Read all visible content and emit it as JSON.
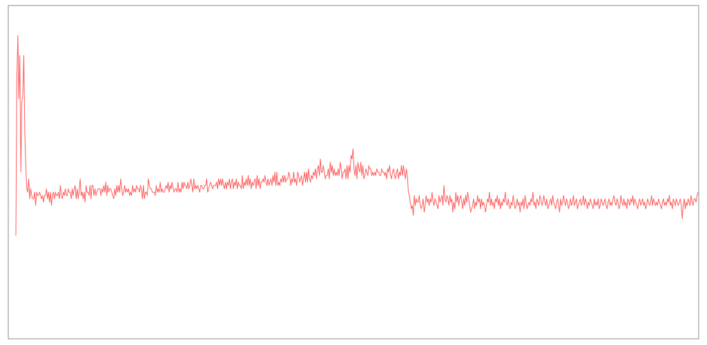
{
  "chart_data": {
    "type": "line",
    "title": "",
    "xlabel": "",
    "ylabel": "",
    "grid": false,
    "legend": "none",
    "xlim": [
      0,
      699
    ],
    "ylim": [
      0,
      100
    ],
    "series": [
      {
        "color": "#ff5a5a",
        "values": [
          31,
          78,
          91,
          72,
          85,
          50,
          71,
          73,
          85,
          62,
          52,
          45,
          44,
          48,
          42,
          45,
          43,
          42,
          42,
          44,
          40,
          44,
          43,
          43,
          44,
          43,
          42,
          43,
          41,
          43,
          43,
          45,
          42,
          44,
          41,
          44,
          40,
          43,
          44,
          42,
          44,
          43,
          43,
          44,
          42,
          46,
          43,
          42,
          44,
          43,
          45,
          43,
          43,
          45,
          44,
          44,
          42,
          45,
          43,
          45,
          46,
          42,
          45,
          42,
          44,
          48,
          43,
          44,
          42,
          44,
          41,
          46,
          44,
          44,
          43,
          46,
          42,
          46,
          46,
          43,
          45,
          43,
          44,
          45,
          45,
          45,
          43,
          45,
          44,
          46,
          44,
          47,
          43,
          46,
          44,
          45,
          45,
          44,
          43,
          42,
          45,
          43,
          46,
          44,
          46,
          44,
          48,
          45,
          43,
          44,
          46,
          44,
          45,
          44,
          45,
          43,
          44,
          43,
          46,
          44,
          45,
          44,
          46,
          45,
          45,
          44,
          46,
          45,
          42,
          46,
          42,
          44,
          44,
          43,
          48,
          46,
          45,
          45,
          44,
          44,
          44,
          43,
          46,
          44,
          45,
          44,
          47,
          44,
          45,
          44,
          44,
          45,
          46,
          45,
          47,
          44,
          46,
          45,
          47,
          45,
          44,
          45,
          45,
          44,
          47,
          44,
          45,
          44,
          47,
          45,
          47,
          46,
          46,
          45,
          47,
          45,
          46,
          48,
          46,
          44,
          48,
          45,
          46,
          45,
          46,
          45,
          44,
          46,
          46,
          45,
          45,
          46,
          46,
          48,
          44,
          45,
          46,
          47,
          46,
          45,
          46,
          46,
          46,
          47,
          45,
          48,
          46,
          48,
          46,
          48,
          46,
          45,
          47,
          45,
          47,
          46,
          48,
          45,
          47,
          48,
          45,
          47,
          46,
          48,
          45,
          47,
          46,
          46,
          45,
          49,
          45,
          47,
          46,
          48,
          46,
          49,
          46,
          48,
          45,
          47,
          46,
          47,
          48,
          45,
          49,
          46,
          48,
          45,
          47,
          47,
          48,
          47,
          49,
          47,
          46,
          48,
          46,
          47,
          48,
          46,
          49,
          47,
          50,
          46,
          50,
          46,
          47,
          46,
          48,
          47,
          49,
          47,
          49,
          47,
          48,
          48,
          50,
          49,
          46,
          48,
          47,
          50,
          47,
          48,
          46,
          50,
          49,
          47,
          48,
          49,
          46,
          48,
          50,
          47,
          50,
          47,
          51,
          48,
          47,
          49,
          48,
          50,
          49,
          51,
          48,
          51,
          52,
          49,
          54,
          50,
          50,
          52,
          50,
          48,
          49,
          49,
          51,
          48,
          53,
          50,
          52,
          49,
          51,
          49,
          50,
          49,
          51,
          49,
          53,
          51,
          48,
          50,
          50,
          51,
          48,
          52,
          48,
          52,
          50,
          55,
          54,
          57,
          51,
          49,
          52,
          48,
          53,
          51,
          50,
          53,
          49,
          52,
          48,
          49,
          51,
          50,
          49,
          52,
          51,
          51,
          49,
          50,
          49,
          50,
          49,
          51,
          50,
          50,
          49,
          49,
          51,
          50,
          50,
          49,
          50,
          48,
          51,
          50,
          52,
          49,
          48,
          50,
          51,
          49,
          48,
          50,
          51,
          48,
          50,
          49,
          52,
          49,
          52,
          50,
          48,
          51,
          49,
          44,
          43,
          41,
          39,
          40,
          37,
          43,
          40,
          42,
          41,
          41,
          43,
          40,
          39,
          40,
          42,
          38,
          40,
          43,
          41,
          42,
          40,
          42,
          41,
          44,
          41,
          40,
          42,
          41,
          40,
          39,
          43,
          41,
          42,
          43,
          40,
          46,
          42,
          41,
          43,
          42,
          40,
          43,
          41,
          42,
          38,
          41,
          39,
          44,
          41,
          43,
          40,
          42,
          43,
          41,
          39,
          42,
          40,
          43,
          41,
          44,
          42,
          40,
          38,
          39,
          40,
          42,
          39,
          41,
          40,
          43,
          41,
          42,
          39,
          42,
          40,
          41,
          40,
          38,
          40,
          42,
          41,
          44,
          40,
          42,
          40,
          41,
          39,
          42,
          41,
          43,
          40,
          42,
          39,
          41,
          40,
          42,
          41,
          44,
          41,
          40,
          42,
          40,
          39,
          41,
          40,
          43,
          41,
          39,
          40,
          42,
          40,
          41,
          38,
          41,
          40,
          42,
          39,
          43,
          41,
          39,
          40,
          41,
          40,
          42,
          41,
          44,
          40,
          41,
          39,
          42,
          41,
          40,
          43,
          42,
          40,
          41,
          43,
          41,
          40,
          42,
          39,
          40,
          41,
          42,
          40,
          43,
          41,
          40,
          39,
          41,
          42,
          40,
          38,
          42,
          40,
          41,
          43,
          41,
          40,
          42,
          41,
          39,
          40,
          42,
          40,
          41,
          43,
          40,
          41,
          42,
          39,
          40,
          41,
          42,
          40,
          41,
          43,
          40,
          42,
          41,
          39,
          41,
          40,
          42,
          41,
          40,
          39,
          42,
          40,
          41,
          40,
          42,
          39,
          40,
          42,
          41,
          40,
          41,
          42,
          40,
          39,
          41,
          42,
          40,
          41,
          40,
          42,
          43,
          41,
          40,
          42,
          41,
          39,
          40,
          43,
          41,
          40,
          42,
          40,
          41,
          39,
          42,
          41,
          40,
          42,
          41,
          43,
          40,
          42,
          41,
          40,
          39,
          41,
          42,
          40,
          41,
          42,
          40,
          41,
          39,
          40,
          42,
          41,
          40,
          41,
          43,
          40,
          42,
          41,
          40,
          41,
          40,
          42,
          41,
          40,
          39,
          41,
          42,
          40,
          41,
          40,
          42,
          41,
          43,
          40,
          41,
          39,
          42,
          41,
          40,
          42,
          41,
          40,
          41,
          42,
          40,
          36,
          40,
          42,
          39,
          41,
          40,
          42,
          41,
          40,
          43,
          41,
          40,
          42,
          42,
          41,
          43,
          44
        ]
      }
    ]
  }
}
